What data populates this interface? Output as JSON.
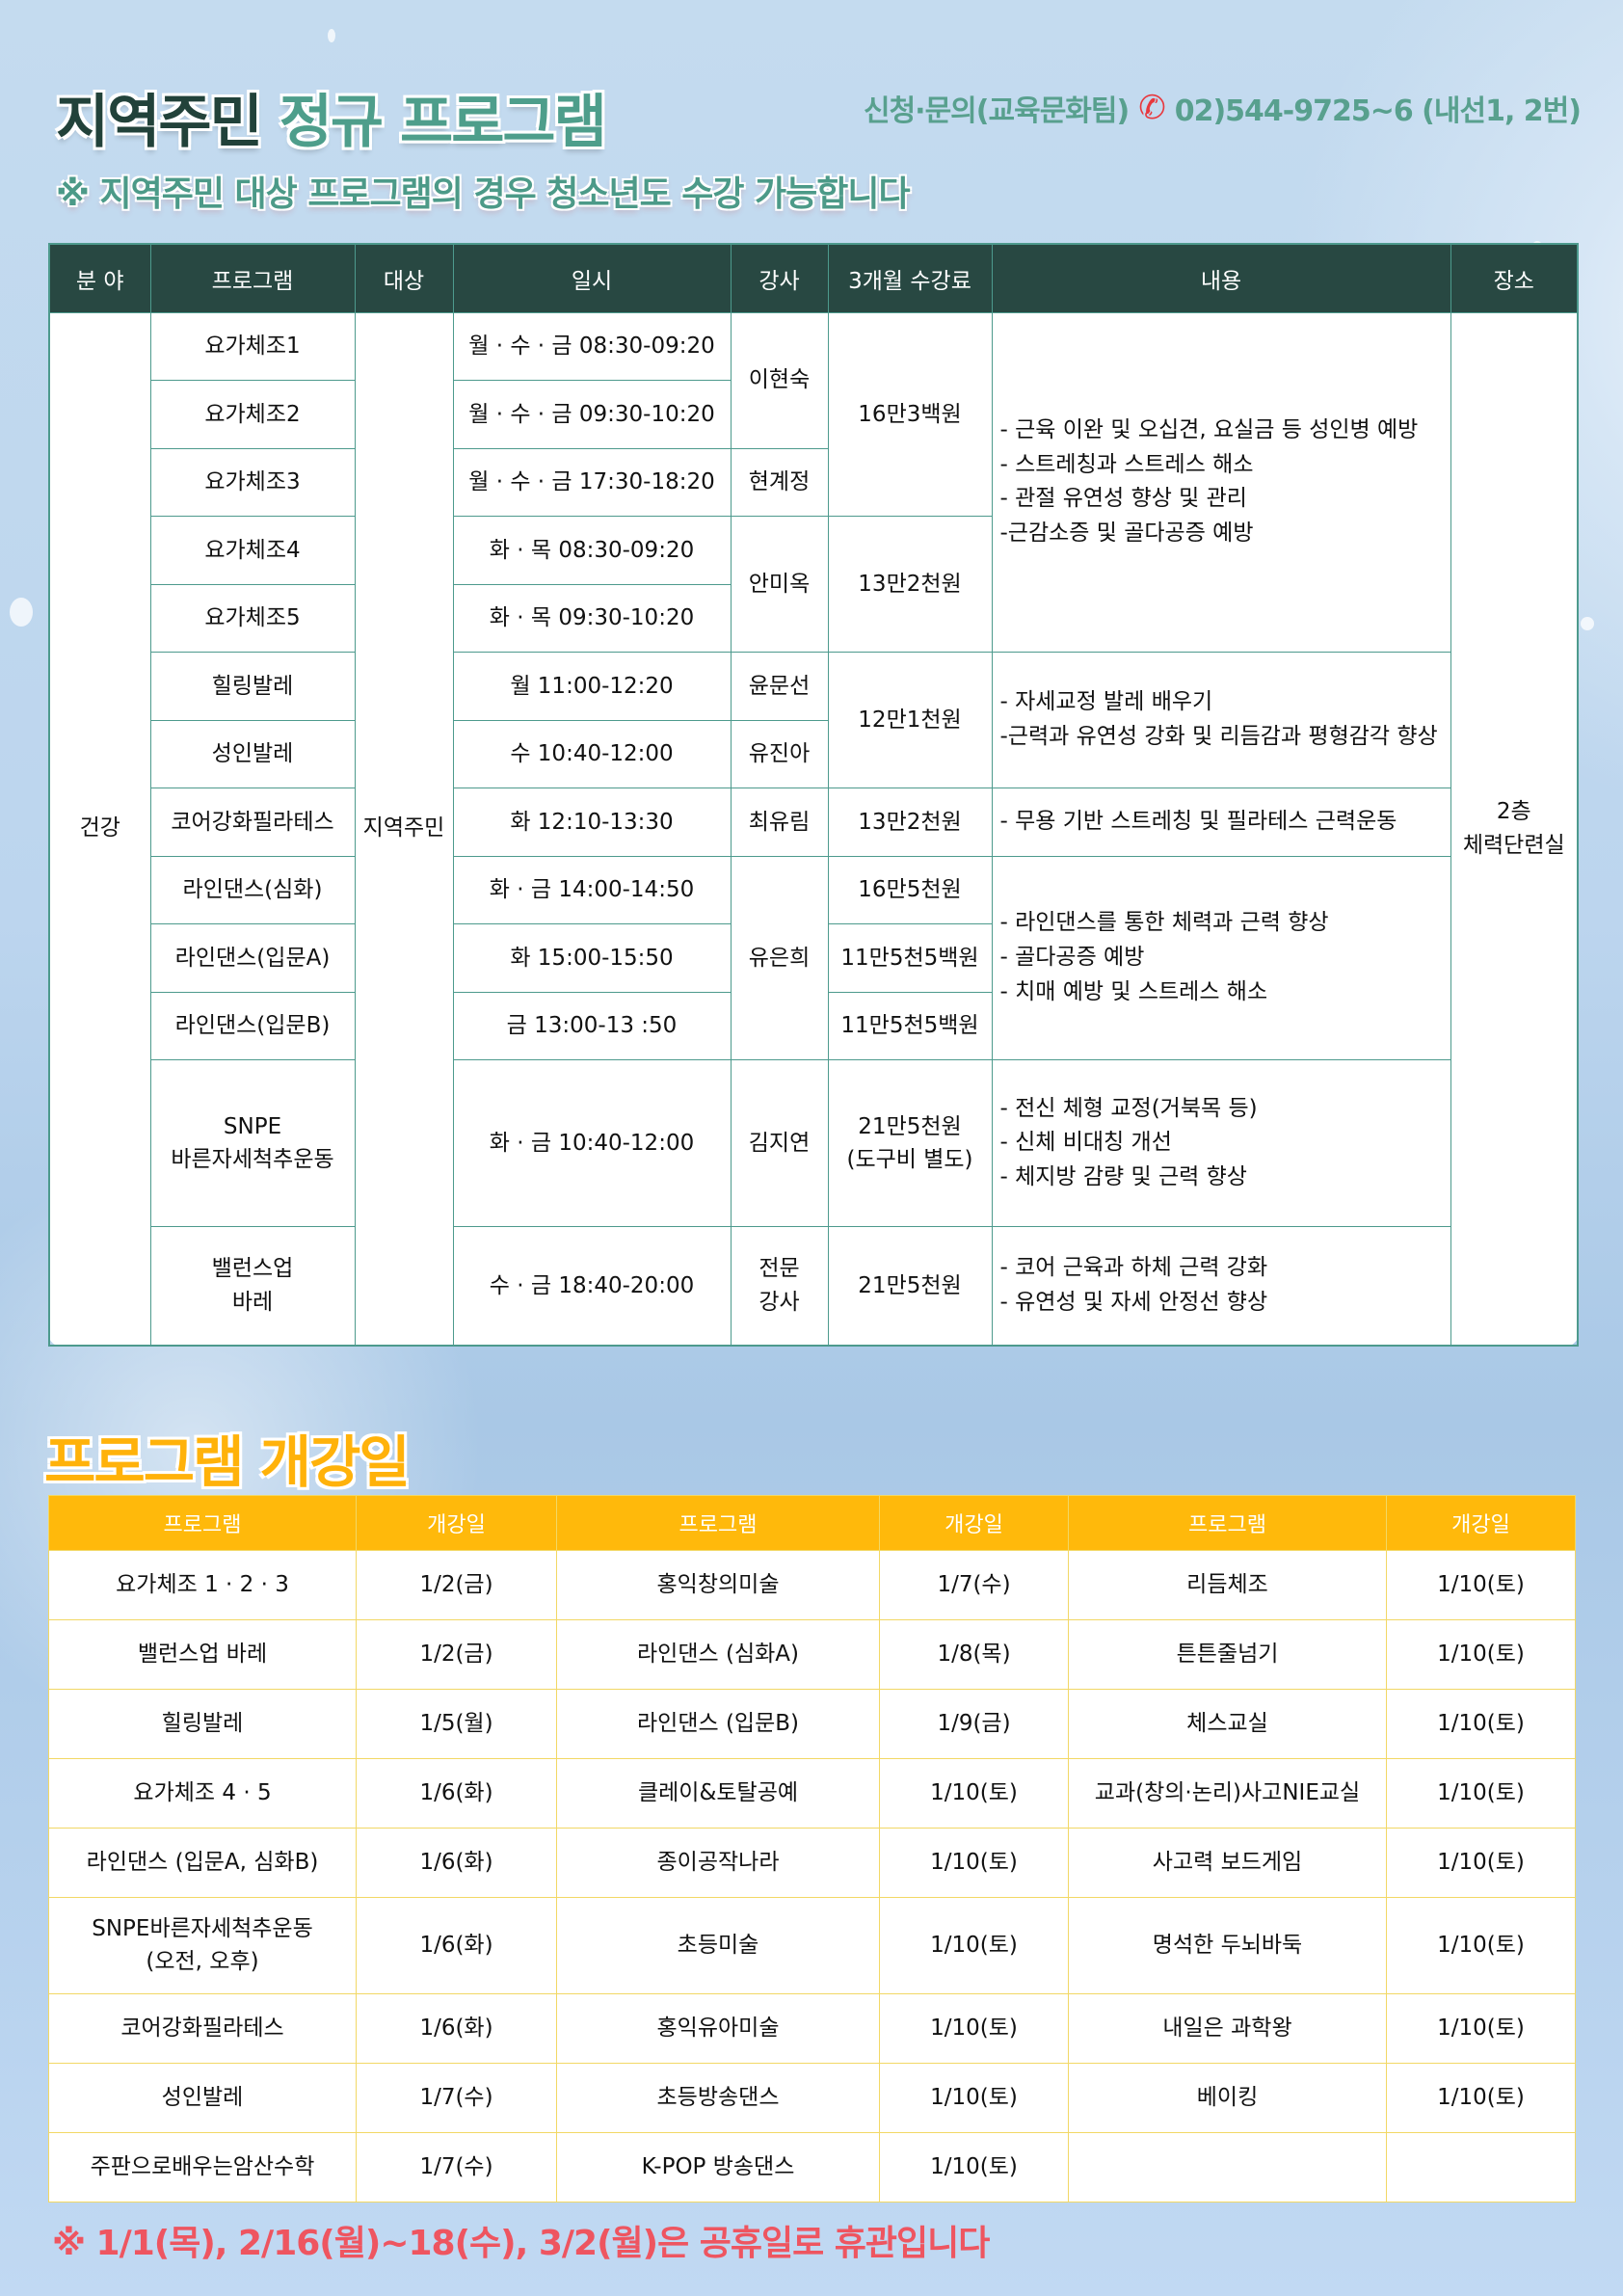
{
  "header": {
    "title_a": "지역주민",
    "title_b": "정규 프로그램",
    "subtitle": "※ 지역주민 대상 프로그램의 경우 청소년도 수강 가능합니다",
    "contact_label": "신청·문의(교육문화팀)",
    "contact_phone": "02)544-9725~6 (내선1, 2번)",
    "phone_icon": "phone-icon"
  },
  "schedule": {
    "headers": [
      "분 야",
      "프로그램",
      "대상",
      "일시",
      "강사",
      "3개월 수강료",
      "내용",
      "장소"
    ],
    "field": "건강",
    "target": "지역주민",
    "place": "2층\n체력단련실",
    "programs": [
      "요가체조1",
      "요가체조2",
      "요가체조3",
      "요가체조4",
      "요가체조5",
      "힐링발레",
      "성인발레",
      "코어강화필라테스",
      "라인댄스(심화)",
      "라인댄스(입문A)",
      "라인댄스(입문B)",
      "SNPE\n바른자세척추운동",
      "밸런스업\n바레"
    ],
    "times": [
      "월 · 수 · 금 08:30-09:20",
      "월 · 수 · 금 09:30-10:20",
      "월 · 수 · 금 17:30-18:20",
      "화 · 목 08:30-09:20",
      "화 · 목 09:30-10:20",
      "월 11:00-12:20",
      "수 10:40-12:00",
      "화 12:10-13:30",
      "화 · 금 14:00-14:50",
      "화 15:00-15:50",
      "금 13:00-13 :50",
      "화 · 금 10:40-12:00",
      "수 · 금 18:40-20:00"
    ],
    "instructors": [
      "이현숙",
      "현계정",
      "안미옥",
      "윤문선",
      "유진아",
      "최유림",
      "유은희",
      "김지연",
      "전문\n강사"
    ],
    "fees": [
      "16만3백원",
      "13만2천원",
      "12만1천원",
      "13만2천원",
      "16만5천원",
      "11만5천5백원",
      "11만5천5백원",
      "21만5천원\n(도구비 별도)",
      "21만5천원"
    ],
    "contents": [
      "- 근육 이완 및 오십견, 요실금 등 성인병 예방\n- 스트레칭과 스트레스 해소\n- 관절 유연성 향상 및 관리\n -근감소증 및 골다공증 예방",
      "- 자세교정 발레 배우기\n -근력과 유연성 강화 및 리듬감과 평형감각 향상",
      "- 무용 기반 스트레칭 및 필라테스 근력운동",
      "- 라인댄스를 통한 체력과 근력 향상\n- 골다공증 예방\n- 치매 예방 및 스트레스 해소",
      "- 전신 체형 교정(거북목 등)\n- 신체 비대칭 개선\n- 체지방 감량 및 근력 향상",
      "- 코어 근육과 하체 근력 강화\n- 유연성 및 자세 안정선 향상"
    ]
  },
  "opening": {
    "title": "프로그램 개강일",
    "headers": [
      "프로그램",
      "개강일",
      "프로그램",
      "개강일",
      "프로그램",
      "개강일"
    ],
    "rows": [
      [
        "요가체조 1 · 2 · 3",
        "1/2(금)",
        "홍익창의미술",
        "1/7(수)",
        "리듬체조",
        "1/10(토)"
      ],
      [
        "밸런스업 바레",
        "1/2(금)",
        "라인댄스 (심화A)",
        "1/8(목)",
        "튼튼줄넘기",
        "1/10(토)"
      ],
      [
        "힐링발레",
        "1/5(월)",
        "라인댄스 (입문B)",
        "1/9(금)",
        "체스교실",
        "1/10(토)"
      ],
      [
        "요가체조 4 · 5",
        "1/6(화)",
        "클레이&토탈공예",
        "1/10(토)",
        "교과(창의·논리)사고NIE교실",
        "1/10(토)"
      ],
      [
        "라인댄스 (입문A, 심화B)",
        "1/6(화)",
        "종이공작나라",
        "1/10(토)",
        "사고력 보드게임",
        "1/10(토)"
      ],
      [
        "SNPE바른자세척추운동\n(오전, 오후)",
        "1/6(화)",
        "초등미술",
        "1/10(토)",
        "명석한 두뇌바둑",
        "1/10(토)"
      ],
      [
        "코어강화필라테스",
        "1/6(화)",
        "홍익유아미술",
        "1/10(토)",
        "내일은 과학왕",
        "1/10(토)"
      ],
      [
        "성인발레",
        "1/7(수)",
        "초등방송댄스",
        "1/10(토)",
        "베이킹",
        "1/10(토)"
      ],
      [
        "주판으로배우는암산수학",
        "1/7(수)",
        "K-POP 방송댄스",
        "1/10(토)",
        "",
        ""
      ]
    ]
  },
  "footer_note": "※ 1/1(목), 2/16(월)~18(수), 3/2(월)은 공휴일로 휴관입니다",
  "colors": {
    "header_green": "#284842",
    "border_teal": "#4d9a8d",
    "accent_orange": "#ffb90b",
    "note_red": "#ee5560"
  }
}
